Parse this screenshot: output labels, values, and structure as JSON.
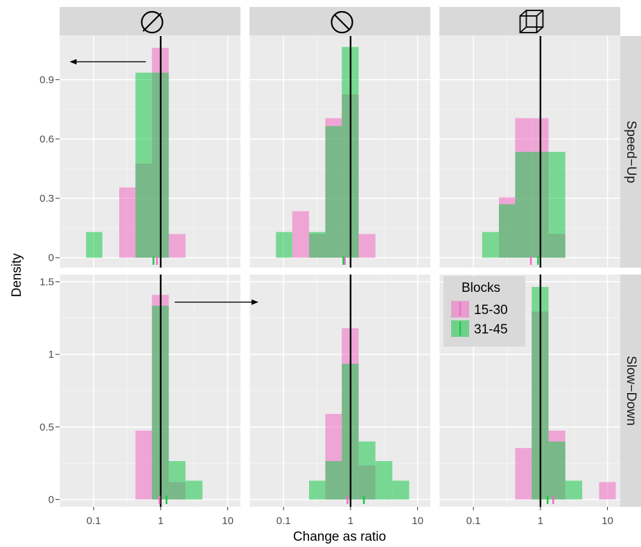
{
  "chart_data": {
    "type": "histogram",
    "xlabel": "Change as ratio",
    "ylabel": "Density",
    "x_scale": "log10",
    "x_ticks": [
      {
        "value": 0.1,
        "label": "0.1"
      },
      {
        "value": 1,
        "label": "1"
      },
      {
        "value": 10,
        "label": "10"
      }
    ],
    "xlim": [
      0.031,
      15.5
    ],
    "reference_line_x": 1,
    "grid": true,
    "column_icons": [
      "slashed-circle-icon",
      "slashed-sphere-icon",
      "wireframe-cube-icon"
    ],
    "row_strips": [
      "Speed−Up",
      "Slow−Down"
    ],
    "rows": [
      {
        "name": "Speed−Up",
        "ylim": [
          -0.05,
          1.12
        ],
        "y_ticks": [
          {
            "value": 0,
            "label": "0"
          },
          {
            "value": 0.3,
            "label": "0.3"
          },
          {
            "value": 0.6,
            "label": "0.6"
          },
          {
            "value": 0.9,
            "label": "0.9"
          }
        ],
        "arrow": {
          "from_x": 0.6,
          "to_x": 0.045,
          "y": 0.99,
          "panel": 0
        }
      },
      {
        "name": "Slow−Down",
        "ylim": [
          -0.05,
          1.55
        ],
        "y_ticks": [
          {
            "value": 0,
            "label": "0"
          },
          {
            "value": 0.5,
            "label": "0.5"
          },
          {
            "value": 1,
            "label": "1"
          },
          {
            "value": 1.5,
            "label": "1.5"
          }
        ],
        "arrow": {
          "from_x": 1.62,
          "to_x": 28,
          "y": 1.36,
          "panel": 0
        }
      }
    ],
    "legend": {
      "title": "Blocks",
      "placement": "inside bottom-right panel, top-left",
      "entries": [
        {
          "label": "15-30",
          "color": "#f06cc3"
        },
        {
          "label": "31-45",
          "color": "#1ac94b"
        }
      ]
    },
    "series_colors": {
      "15-30": "#f06cc3",
      "31-45": "#1ac94b",
      "overlap": "#609c7b"
    },
    "panels": [
      {
        "row": 0,
        "col": 0,
        "series": [
          {
            "name": "15-30",
            "bins": [
              [
                0.24,
                0.42,
                0.355
              ],
              [
                0.42,
                0.74,
                0.475
              ],
              [
                0.74,
                1.32,
                1.06
              ],
              [
                1.32,
                2.35,
                0.12
              ]
            ],
            "median": 0.88
          },
          {
            "name": "31-45",
            "bins": [
              [
                0.077,
                0.135,
                0.13
              ],
              [
                0.42,
                0.74,
                0.935
              ],
              [
                0.74,
                1.32,
                0.935
              ]
            ],
            "median": 0.78
          }
        ]
      },
      {
        "row": 0,
        "col": 1,
        "series": [
          {
            "name": "15-30",
            "bins": [
              [
                0.135,
                0.24,
                0.235
              ],
              [
                0.24,
                0.42,
                0.12
              ],
              [
                0.42,
                0.74,
                0.705
              ],
              [
                0.74,
                1.32,
                0.825
              ],
              [
                1.32,
                2.35,
                0.12
              ]
            ],
            "median": 0.82
          },
          {
            "name": "31-45",
            "bins": [
              [
                0.077,
                0.135,
                0.13
              ],
              [
                0.24,
                0.42,
                0.13
              ],
              [
                0.42,
                0.74,
                0.665
              ],
              [
                0.74,
                1.32,
                1.065
              ]
            ],
            "median": 0.78
          }
        ]
      },
      {
        "row": 0,
        "col": 2,
        "series": [
          {
            "name": "15-30",
            "bins": [
              [
                0.24,
                0.42,
                0.305
              ],
              [
                0.42,
                0.74,
                0.705
              ],
              [
                0.74,
                1.32,
                0.705
              ],
              [
                1.32,
                2.35,
                0.12
              ]
            ],
            "median": 0.72
          },
          {
            "name": "31-45",
            "bins": [
              [
                0.135,
                0.24,
                0.13
              ],
              [
                0.24,
                0.42,
                0.27
              ],
              [
                0.42,
                0.74,
                0.535
              ],
              [
                0.74,
                1.32,
                0.535
              ],
              [
                1.32,
                2.35,
                0.535
              ]
            ],
            "median": 0.92
          }
        ]
      },
      {
        "row": 1,
        "col": 0,
        "series": [
          {
            "name": "15-30",
            "bins": [
              [
                0.42,
                0.74,
                0.475
              ],
              [
                0.74,
                1.32,
                1.41
              ],
              [
                1.32,
                2.35,
                0.12
              ]
            ],
            "median": 0.96
          },
          {
            "name": "31-45",
            "bins": [
              [
                0.74,
                1.32,
                1.335
              ],
              [
                1.32,
                2.35,
                0.265
              ],
              [
                2.35,
                4.2,
                0.13
              ]
            ],
            "median": 1.22
          }
        ]
      },
      {
        "row": 1,
        "col": 1,
        "series": [
          {
            "name": "15-30",
            "bins": [
              [
                0.42,
                0.74,
                0.59
              ],
              [
                0.74,
                1.32,
                1.18
              ],
              [
                1.32,
                2.35,
                0.235
              ]
            ],
            "median": 0.9
          },
          {
            "name": "31-45",
            "bins": [
              [
                0.24,
                0.42,
                0.13
              ],
              [
                0.42,
                0.74,
                0.265
              ],
              [
                0.74,
                1.32,
                0.935
              ],
              [
                1.32,
                2.35,
                0.4
              ],
              [
                2.35,
                4.2,
                0.265
              ],
              [
                4.2,
                7.5,
                0.13
              ]
            ],
            "median": 1.58
          }
        ]
      },
      {
        "row": 1,
        "col": 2,
        "series": [
          {
            "name": "15-30",
            "bins": [
              [
                0.42,
                0.74,
                0.355
              ],
              [
                0.74,
                1.32,
                1.295
              ],
              [
                1.32,
                2.35,
                0.475
              ],
              [
                7.5,
                13.3,
                0.12
              ]
            ],
            "median": 1.55
          },
          {
            "name": "31-45",
            "bins": [
              [
                0.74,
                1.32,
                1.465
              ],
              [
                1.32,
                2.35,
                0.4
              ],
              [
                2.35,
                4.2,
                0.13
              ]
            ],
            "median": 1.28
          }
        ]
      }
    ]
  }
}
